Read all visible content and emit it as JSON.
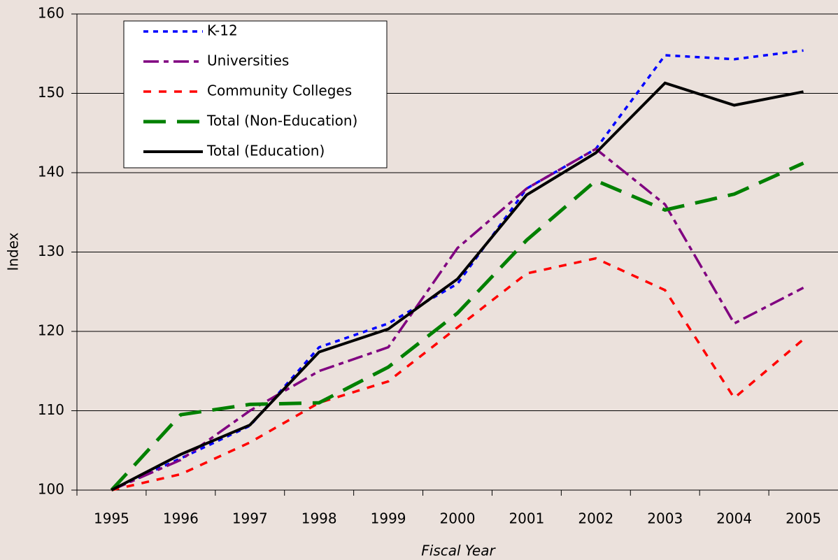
{
  "chart_data": {
    "type": "line",
    "x_label": "Fiscal Year",
    "y_label": "Index",
    "categories": [
      "1995",
      "1996",
      "1997",
      "1998",
      "1999",
      "2000",
      "2001",
      "2002",
      "2003",
      "2004",
      "2005"
    ],
    "series": [
      {
        "name": "K-12",
        "color": "#0000ff",
        "values": [
          100,
          104,
          108.1,
          118,
          121,
          126,
          138,
          143,
          154.8,
          154.3,
          155.4
        ]
      },
      {
        "name": "Universities",
        "color": "#800080",
        "values": [
          100,
          103.8,
          110,
          115,
          118,
          130.5,
          138,
          143,
          136,
          121,
          125.5
        ]
      },
      {
        "name": "Community Colleges",
        "color": "#ff0000",
        "values": [
          100,
          102,
          106,
          111,
          113.7,
          120.5,
          127.3,
          129.2,
          125.2,
          111.6,
          119
        ]
      },
      {
        "name": "Total (Non-Education)",
        "color": "#008000",
        "values": [
          100,
          109.5,
          110.8,
          111,
          115.5,
          122.3,
          131.5,
          139,
          135.3,
          137.3,
          141.2
        ]
      },
      {
        "name": "Total (Education)",
        "color": "#000000",
        "values": [
          100,
          104.5,
          108.2,
          117.4,
          120.3,
          126.6,
          137.2,
          142.5,
          151.3,
          148.5,
          150.2
        ]
      }
    ],
    "ylim": [
      100,
      160
    ],
    "yticks": [
      100,
      110,
      120,
      130,
      140,
      150,
      160
    ],
    "grid": true,
    "legend": "upper left"
  }
}
